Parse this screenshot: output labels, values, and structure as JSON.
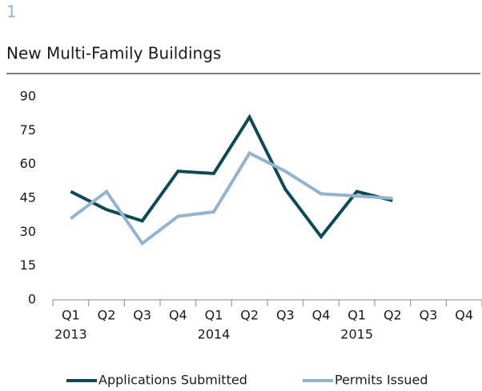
{
  "chart_data": {
    "type": "line",
    "label": "1",
    "title": "New Multi-Family Buildings",
    "categories": [
      "Q1",
      "Q2",
      "Q3",
      "Q4",
      "Q1",
      "Q2",
      "Q3",
      "Q4",
      "Q1",
      "Q2",
      "Q3",
      "Q4"
    ],
    "years": [
      "2013",
      null,
      null,
      null,
      "2014",
      null,
      null,
      null,
      "2015",
      null,
      null,
      null
    ],
    "series": [
      {
        "name": "Applications Submitted",
        "color": "#0d4a56",
        "values": [
          48,
          40,
          35,
          57,
          56,
          81,
          49,
          28,
          48,
          44,
          null,
          null
        ]
      },
      {
        "name": "Permits Issued",
        "color": "#93b4cc",
        "values": [
          36,
          48,
          25,
          37,
          39,
          65,
          57,
          47,
          46,
          45,
          null,
          null
        ]
      }
    ],
    "ylim": [
      0,
      90
    ],
    "yticks": [
      0,
      15,
      30,
      45,
      60,
      75,
      90
    ],
    "grid": false,
    "legend": "bottom"
  }
}
